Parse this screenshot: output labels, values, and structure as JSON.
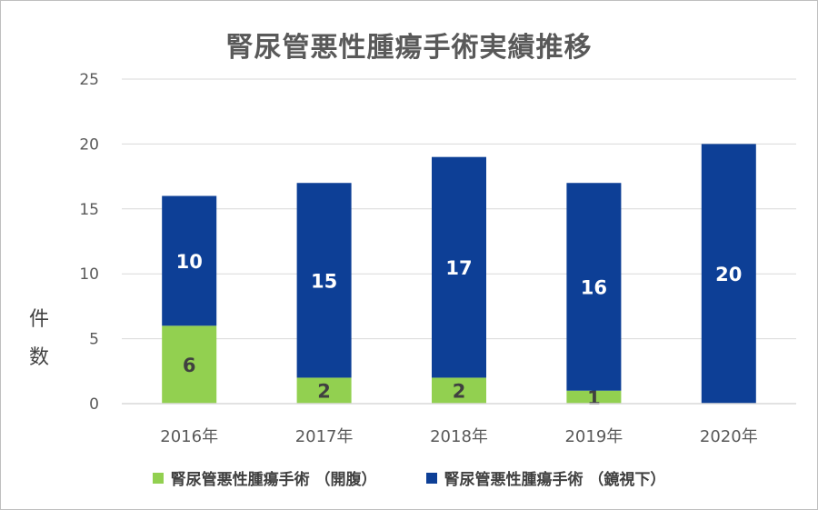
{
  "chart_data": {
    "type": "bar",
    "stacked": true,
    "title": "腎尿管悪性腫瘍手術実績推移",
    "xlabel": "",
    "ylabel": "件数",
    "categories": [
      "2016年",
      "2017年",
      "2018年",
      "2019年",
      "2020年"
    ],
    "series": [
      {
        "name": "腎尿管悪性腫瘍手術 （開腹）",
        "values": [
          6,
          2,
          2,
          1,
          0
        ],
        "color": "#92d050",
        "labels": [
          "6",
          "2",
          "2",
          "1",
          ""
        ]
      },
      {
        "name": "腎尿管悪性腫瘍手術 （鏡視下）",
        "values": [
          10,
          15,
          17,
          16,
          20
        ],
        "color": "#0d3f96",
        "labels": [
          "10",
          "15",
          "17",
          "16",
          "20"
        ]
      }
    ],
    "ylim": [
      0,
      25
    ],
    "yticks": [
      0,
      5,
      10,
      15,
      20,
      25
    ],
    "grid": true,
    "legend_position": "bottom"
  }
}
